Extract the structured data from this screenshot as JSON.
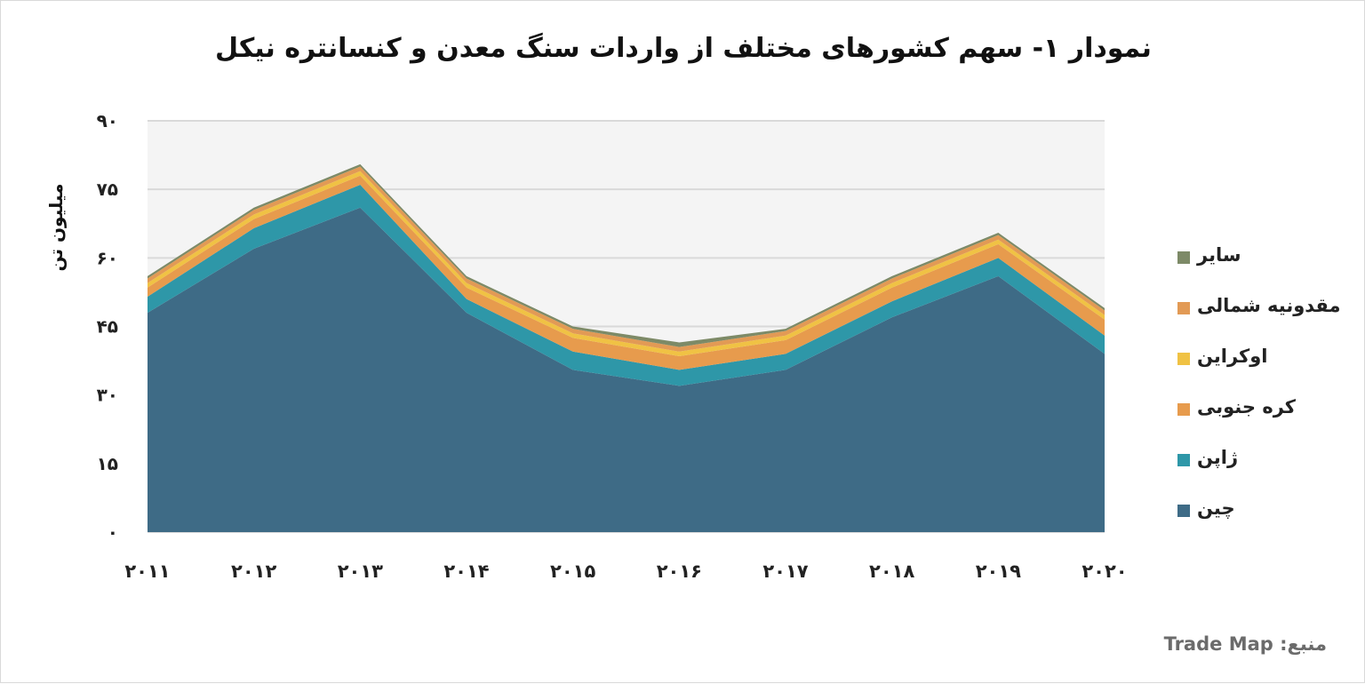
{
  "chart_data": {
    "type": "area",
    "stacked": true,
    "title": "نمودار ۱- سهم کشورهای مختلف از واردات سنگ معدن و کنسانتره نیکل",
    "ylabel": "میلیون تن",
    "xlabel": "",
    "categories": [
      "۲۰۱۱",
      "۲۰۱۲",
      "۲۰۱۳",
      "۲۰۱۴",
      "۲۰۱۵",
      "۲۰۱۶",
      "۲۰۱۷",
      "۲۰۱۸",
      "۲۰۱۹",
      "۲۰۲۰"
    ],
    "ylim": [
      0,
      90
    ],
    "yticks": [
      0,
      15,
      30,
      45,
      60,
      75,
      90
    ],
    "ytick_labels": [
      "۰",
      "۱۵",
      "۳۰",
      "۴۵",
      "۶۰",
      "۷۵",
      "۹۰"
    ],
    "grid": true,
    "legend_position": "right",
    "series": [
      {
        "name": "چین",
        "color": "#3e6b86",
        "values": [
          48,
          62,
          71,
          48,
          35.5,
          32,
          35.5,
          47,
          56,
          39
        ]
      },
      {
        "name": "ژاپن",
        "color": "#2e97a8",
        "values": [
          3.5,
          4.5,
          5,
          3,
          4,
          3.5,
          3.5,
          3.5,
          4,
          4
        ]
      },
      {
        "name": "کره جنوبی",
        "color": "#e79b4d",
        "values": [
          2,
          2,
          2,
          2.5,
          3,
          3,
          3,
          3,
          3,
          3.5
        ]
      },
      {
        "name": "اوکراین",
        "color": "#f0c244",
        "values": [
          1,
          1,
          1,
          1,
          1,
          1,
          1,
          1,
          1,
          1
        ]
      },
      {
        "name": "مقدونیه شمالی",
        "color": "#e29a55",
        "values": [
          1,
          1,
          1,
          1,
          1,
          1,
          1,
          1,
          1,
          1
        ]
      },
      {
        "name": "سایر",
        "color": "#7d8a67",
        "values": [
          0.5,
          0.5,
          0.5,
          0.5,
          0.5,
          1,
          0.5,
          0.5,
          0.5,
          0.5
        ]
      }
    ],
    "source_label": "منبع:",
    "source_value": "Trade Map"
  },
  "legend": {
    "items": [
      {
        "label": "سایر",
        "color": "#7d8a67"
      },
      {
        "label": "مقدونیه شمالی",
        "color": "#e29a55"
      },
      {
        "label": "اوکراین",
        "color": "#f0c244"
      },
      {
        "label": "کره جنوبی",
        "color": "#e79b4d"
      },
      {
        "label": "ژاپن",
        "color": "#2e97a8"
      },
      {
        "label": "چین",
        "color": "#3e6b86"
      }
    ]
  },
  "colors": {
    "grid": "#d9d9d9",
    "plot_bg": "#f4f4f4",
    "text": "#222222"
  }
}
